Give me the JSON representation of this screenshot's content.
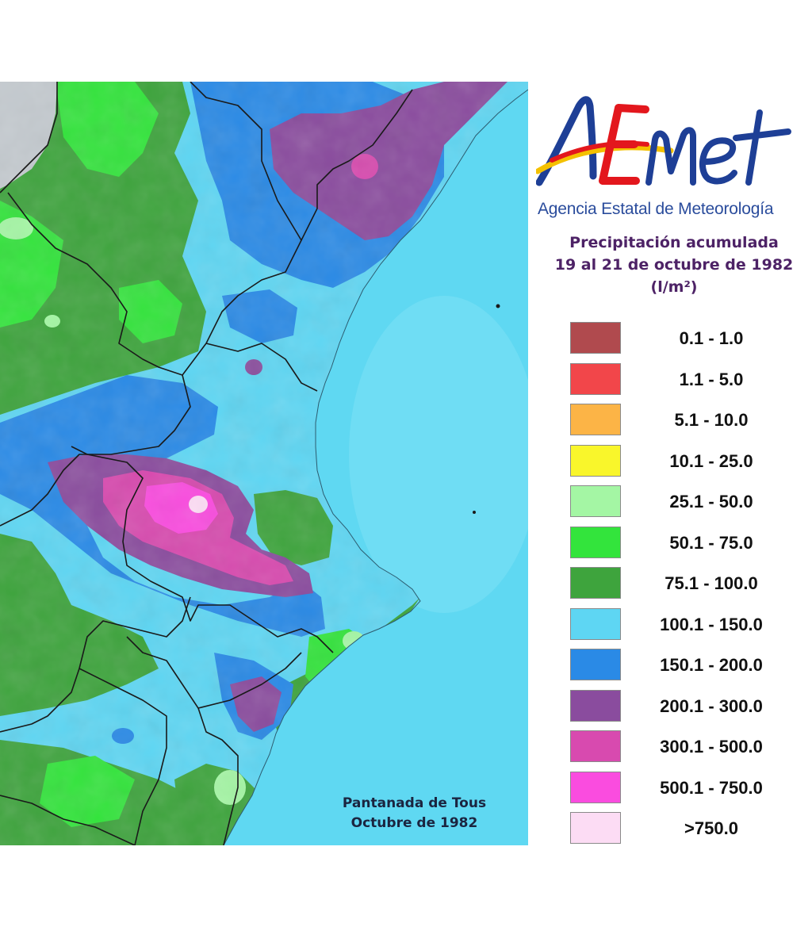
{
  "logo": {
    "wordmark": "AEMet",
    "agency_name": "Agencia Estatal de Meteorología",
    "colors": {
      "blue": "#1e3f96",
      "red": "#e3171d",
      "yellow": "#f4c100"
    }
  },
  "title": {
    "line1": "Precipitación acumulada",
    "line2": "19 al 21 de octubre de 1982",
    "unit": "(l/m²)"
  },
  "legend": {
    "items": [
      {
        "label": "0.1 - 1.0",
        "color": "#b04a4e"
      },
      {
        "label": "1.1 - 5.0",
        "color": "#f2464a"
      },
      {
        "label": "5.1 - 10.0",
        "color": "#fcb446"
      },
      {
        "label": "10.1 - 25.0",
        "color": "#f9f62b"
      },
      {
        "label": "25.1 - 50.0",
        "color": "#a4f6a4"
      },
      {
        "label": "50.1 - 75.0",
        "color": "#33e43c"
      },
      {
        "label": "75.1 - 100.0",
        "color": "#3ea43d"
      },
      {
        "label": "100.1 - 150.0",
        "color": "#5ed6f3"
      },
      {
        "label": "150.1 - 200.0",
        "color": "#2a8ae6"
      },
      {
        "label": "200.1 - 300.0",
        "color": "#8a4c9e"
      },
      {
        "label": "300.1 - 500.0",
        "color": "#d84aaf"
      },
      {
        "label": "500.1 - 750.0",
        "color": "#fa4cdf"
      },
      {
        "label": ">750.0",
        "color": "#fcdcf4"
      }
    ]
  },
  "map": {
    "caption_line1": "Pantanada de Tous",
    "caption_line2": "Octubre de 1982",
    "sea_color": "#5fd8f2",
    "no_data_color": "#c4cacf",
    "border_color": "#1a1a1a"
  }
}
